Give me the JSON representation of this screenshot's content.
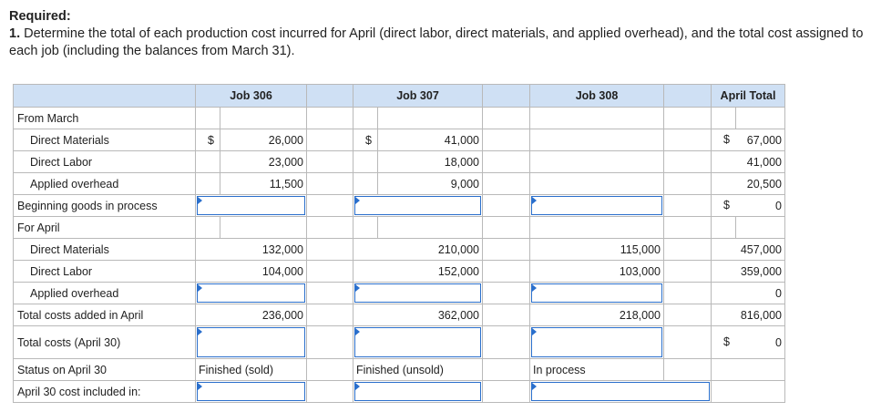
{
  "header": {
    "title": "Required:",
    "question_number": "1.",
    "question_text": "Determine the total of each production cost incurred for April (direct labor, direct materials, and applied overhead), and the total cost assigned to each job (including the balances from March 31)."
  },
  "columns": {
    "job306": "Job 306",
    "job307": "Job 307",
    "job308": "Job 308",
    "total": "April Total"
  },
  "currency_symbol": "$",
  "rows": {
    "from_march": {
      "label": "From March"
    },
    "march_dm": {
      "label": "Direct Materials",
      "job306": "26,000",
      "job307": "41,000",
      "job308": "",
      "total": "67,000"
    },
    "march_dl": {
      "label": "Direct Labor",
      "job306": "23,000",
      "job307": "18,000",
      "job308": "",
      "total": "41,000"
    },
    "march_oh": {
      "label": "Applied overhead",
      "job306": "11,500",
      "job307": "9,000",
      "job308": "",
      "total": "20,500"
    },
    "beginning_gip": {
      "label": "Beginning goods in process",
      "total": "0"
    },
    "for_april": {
      "label": "For April"
    },
    "april_dm": {
      "label": "Direct Materials",
      "job306": "132,000",
      "job307": "210,000",
      "job308": "115,000",
      "total": "457,000"
    },
    "april_dl": {
      "label": "Direct Labor",
      "job306": "104,000",
      "job307": "152,000",
      "job308": "103,000",
      "total": "359,000"
    },
    "april_oh": {
      "label": "Applied overhead",
      "total": "0"
    },
    "total_added": {
      "label": "Total costs added in April",
      "job306": "236,000",
      "job307": "362,000",
      "job308": "218,000",
      "total": "816,000"
    },
    "total_costs": {
      "label": "Total costs (April 30)",
      "total": "0"
    },
    "status": {
      "label": "Status on April 30",
      "job306": "Finished (sold)",
      "job307": "Finished (unsold)",
      "job308": "In process"
    },
    "cost_included": {
      "label": "April 30 cost included in:"
    }
  }
}
